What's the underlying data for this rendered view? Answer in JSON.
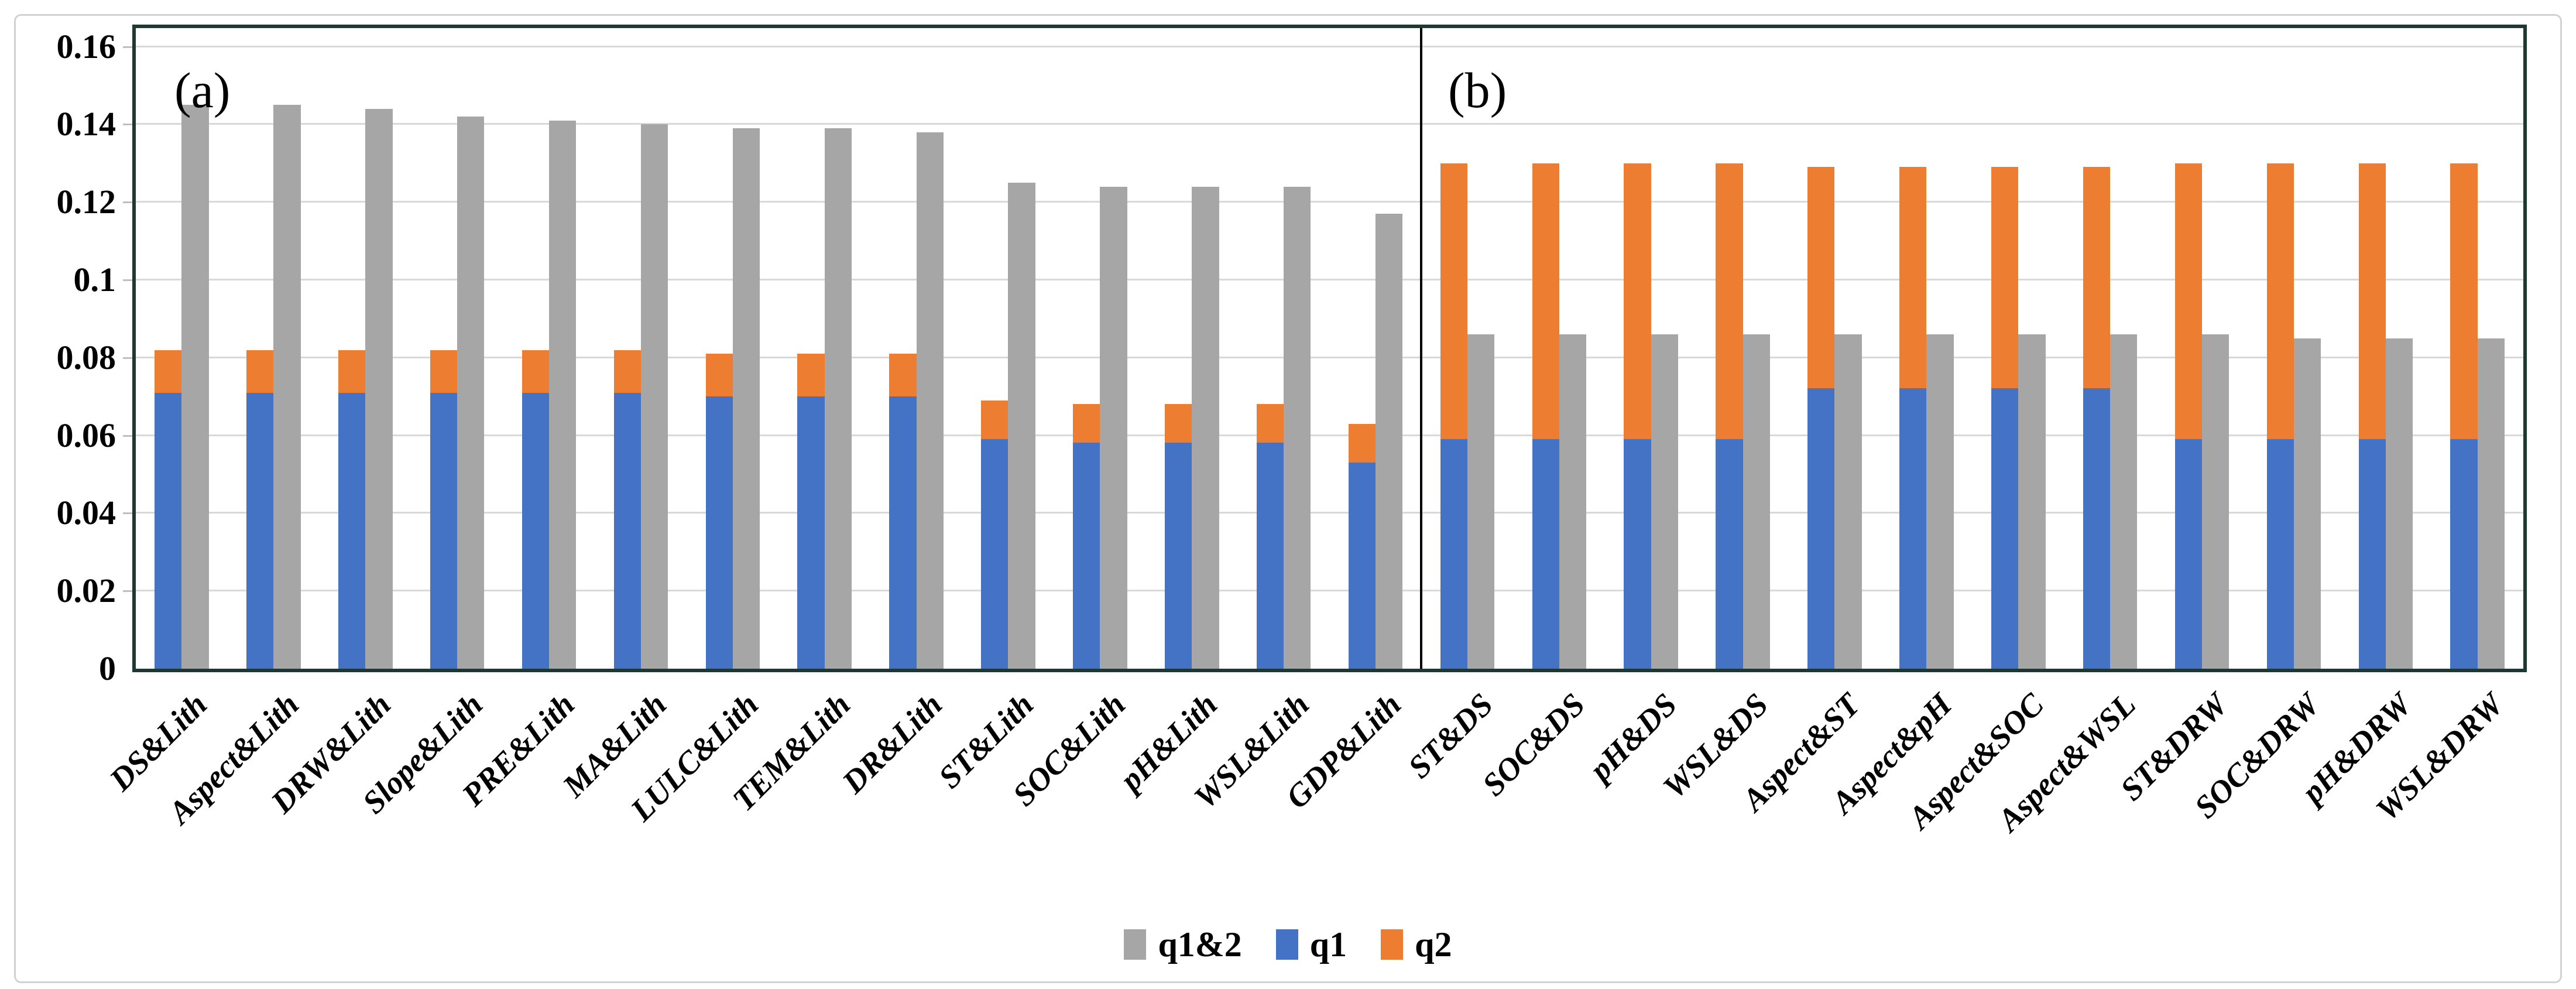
{
  "figure": {
    "panel_a_label": "(a)",
    "panel_b_label": "(b)",
    "legend": [
      {
        "label": "q1&2",
        "series_key": "q1&2",
        "color": "#A6A6A6"
      },
      {
        "label": "q1",
        "series_key": "q1",
        "color": "#4472C4"
      },
      {
        "label": "q2",
        "series_key": "q2",
        "color": "#ED7D31"
      }
    ]
  },
  "colors": {
    "q1_blue": "#4472C4",
    "q2_orange": "#ED7D31",
    "q12_gray": "#A6A6A6",
    "plot_border": "#1c3a33",
    "gridline": "#d9d9d9",
    "tick": "#bfbfbf",
    "panel_divider": "#000000",
    "figure_border": "#d2d2d2",
    "text": "#000000"
  },
  "axis": {
    "ylim": [
      0,
      0.16
    ],
    "ytick_labels": [
      "0.16",
      "0.14",
      "0.12",
      "0.1",
      "0.08",
      "0.06",
      "0.04",
      "0.02",
      "0"
    ],
    "ytick_values": [
      0.16,
      0.14,
      0.12,
      0.1,
      0.08,
      0.06,
      0.04,
      0.02,
      0
    ],
    "grid": true
  },
  "chart_data": [
    {
      "type": "bar",
      "panel": "(a)",
      "bar_layout": "per category: one stacked bar (q1 bottom, q2 top) beside one plain bar (q1&2)",
      "categories": [
        "DS&Lith",
        "Aspect&Lith",
        "DRW&Lith",
        "Slope&Lith",
        "PRE&Lith",
        "MA&Lith",
        "LULC&Lith",
        "TEM&Lith",
        "DR&Lith",
        "ST&Lith",
        "SOC&Lith",
        "pH&Lith",
        "WSL&Lith",
        "GDP&Lith"
      ],
      "series": [
        {
          "name": "q1",
          "stack": "stacked",
          "color": "#4472C4",
          "values": [
            0.071,
            0.071,
            0.071,
            0.071,
            0.071,
            0.071,
            0.07,
            0.07,
            0.07,
            0.059,
            0.058,
            0.058,
            0.058,
            0.053
          ]
        },
        {
          "name": "q2",
          "stack": "stacked",
          "color": "#ED7D31",
          "values": [
            0.011,
            0.011,
            0.011,
            0.011,
            0.011,
            0.011,
            0.011,
            0.011,
            0.011,
            0.01,
            0.01,
            0.01,
            0.01,
            0.01
          ]
        },
        {
          "name": "q1&2",
          "stack": "separate",
          "color": "#A6A6A6",
          "values": [
            0.145,
            0.145,
            0.144,
            0.142,
            0.141,
            0.14,
            0.139,
            0.139,
            0.138,
            0.125,
            0.124,
            0.124,
            0.124,
            0.117
          ]
        }
      ],
      "ylim": [
        0,
        0.16
      ],
      "grid": true,
      "legend_position": "bottom"
    },
    {
      "type": "bar",
      "panel": "(b)",
      "bar_layout": "per category: one stacked bar (q1 bottom, q2 top) beside one plain bar (q1&2)",
      "categories": [
        "ST&DS",
        "SOC&DS",
        "pH&DS",
        "WSL&DS",
        "Aspect&ST",
        "Aspect&pH",
        "Aspect&SOC",
        "Aspect&WSL",
        "ST&DRW",
        "SOC&DRW",
        "pH&DRW",
        "WSL&DRW"
      ],
      "series": [
        {
          "name": "q1",
          "stack": "stacked",
          "color": "#4472C4",
          "values": [
            0.059,
            0.059,
            0.059,
            0.059,
            0.072,
            0.072,
            0.072,
            0.072,
            0.059,
            0.059,
            0.059,
            0.059
          ]
        },
        {
          "name": "q2",
          "stack": "stacked",
          "color": "#ED7D31",
          "values": [
            0.071,
            0.071,
            0.071,
            0.071,
            0.057,
            0.057,
            0.057,
            0.057,
            0.071,
            0.071,
            0.071,
            0.071
          ]
        },
        {
          "name": "q1&2",
          "stack": "separate",
          "color": "#A6A6A6",
          "values": [
            0.086,
            0.086,
            0.086,
            0.086,
            0.086,
            0.086,
            0.086,
            0.086,
            0.086,
            0.085,
            0.085,
            0.085
          ]
        }
      ],
      "ylim": [
        0,
        0.16
      ],
      "grid": true,
      "legend_position": "bottom"
    }
  ]
}
